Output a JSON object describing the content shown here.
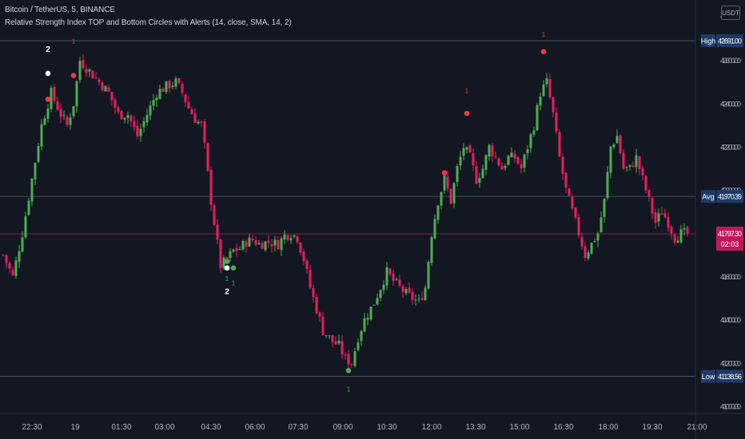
{
  "header": {
    "symbol_line": "Bitcoin / TetherUS, 5, BINANCE",
    "indicator_line": "Relative Strength Index TOP and Bottom Circles with Alerts (14, close, SMA, 14, 2)"
  },
  "currency_button": {
    "label": "USDT"
  },
  "colors": {
    "background": "#131722",
    "up_candle": "#4caf50",
    "down_candle": "#e91e63",
    "grid_line": "#363a45",
    "price_line": "#e91e63",
    "top_circle": "#f23645",
    "bottom_circle": "#4caf50",
    "marker_white": "#ffffff",
    "label_blue": "#1e3a68"
  },
  "chart_data": {
    "type": "candlestick",
    "y_axis": {
      "ticks": [
        "42600.00",
        "42400.00",
        "42200.00",
        "42000.00",
        "41800.00",
        "41600.00",
        "41400.00",
        "41200.00",
        "41000.00"
      ],
      "tick_values": [
        42600,
        42400,
        42200,
        42000,
        41800,
        41600,
        41400,
        41200,
        41000
      ],
      "partial_top_tick": "4",
      "range": [
        40980,
        42750
      ]
    },
    "x_axis": {
      "ticks": [
        "22:30",
        "19",
        "01:30",
        "03:00",
        "04:30",
        "06:00",
        "07:30",
        "09:00",
        "10:30",
        "12:00",
        "13:30",
        "15:00",
        "16:30",
        "18:00",
        "19:30",
        "21:00"
      ]
    },
    "levels": [
      {
        "label": "High",
        "value": "42691.00",
        "y": 42691
      },
      {
        "label": "Avg",
        "value": "41970.39",
        "y": 41970.39
      }
    ],
    "low_level": {
      "label": "Low",
      "value": "41138.56",
      "y": 41138.56
    },
    "current_price": {
      "value": "41797.30",
      "countdown": "02:03",
      "y": 41797.3
    },
    "anchors": [
      [
        0,
        41700
      ],
      [
        3,
        41600
      ],
      [
        6,
        41800
      ],
      [
        9,
        42050
      ],
      [
        12,
        42300
      ],
      [
        15,
        42450
      ],
      [
        18,
        42350
      ],
      [
        20,
        42300
      ],
      [
        22,
        42400
      ],
      [
        24,
        42600
      ],
      [
        27,
        42550
      ],
      [
        30,
        42500
      ],
      [
        33,
        42450
      ],
      [
        36,
        42350
      ],
      [
        39,
        42350
      ],
      [
        42,
        42250
      ],
      [
        45,
        42350
      ],
      [
        48,
        42450
      ],
      [
        51,
        42480
      ],
      [
        54,
        42500
      ],
      [
        56,
        42450
      ],
      [
        58,
        42380
      ],
      [
        60,
        42330
      ],
      [
        62,
        42300
      ],
      [
        63,
        42200
      ],
      [
        65,
        41950
      ],
      [
        67,
        41750
      ],
      [
        68,
        41650
      ],
      [
        70,
        41680
      ],
      [
        72,
        41720
      ],
      [
        74,
        41730
      ],
      [
        76,
        41760
      ],
      [
        78,
        41770
      ],
      [
        80,
        41750
      ],
      [
        83,
        41760
      ],
      [
        86,
        41750
      ],
      [
        88,
        41790
      ],
      [
        90,
        41800
      ],
      [
        92,
        41780
      ],
      [
        94,
        41680
      ],
      [
        96,
        41550
      ],
      [
        98,
        41450
      ],
      [
        100,
        41350
      ],
      [
        103,
        41300
      ],
      [
        105,
        41280
      ],
      [
        107,
        41220
      ],
      [
        109,
        41200
      ],
      [
        111,
        41320
      ],
      [
        113,
        41400
      ],
      [
        116,
        41480
      ],
      [
        118,
        41550
      ],
      [
        120,
        41620
      ],
      [
        122,
        41580
      ],
      [
        124,
        41550
      ],
      [
        126,
        41520
      ],
      [
        128,
        41500
      ],
      [
        130,
        41480
      ],
      [
        132,
        41550
      ],
      [
        134,
        41800
      ],
      [
        136,
        41950
      ],
      [
        138,
        42050
      ],
      [
        140,
        41950
      ],
      [
        142,
        42100
      ],
      [
        144,
        42200
      ],
      [
        146,
        42150
      ],
      [
        148,
        42050
      ],
      [
        150,
        42100
      ],
      [
        152,
        42200
      ],
      [
        154,
        42150
      ],
      [
        156,
        42100
      ],
      [
        158,
        42150
      ],
      [
        160,
        42150
      ],
      [
        162,
        42100
      ],
      [
        164,
        42200
      ],
      [
        166,
        42300
      ],
      [
        168,
        42450
      ],
      [
        170,
        42500
      ],
      [
        172,
        42350
      ],
      [
        174,
        42150
      ],
      [
        176,
        42000
      ],
      [
        178,
        41900
      ],
      [
        180,
        41800
      ],
      [
        182,
        41700
      ],
      [
        184,
        41750
      ],
      [
        186,
        41800
      ],
      [
        188,
        41950
      ],
      [
        190,
        42200
      ],
      [
        192,
        42250
      ],
      [
        194,
        42100
      ],
      [
        196,
        42100
      ],
      [
        198,
        42150
      ],
      [
        200,
        42050
      ],
      [
        202,
        41950
      ],
      [
        204,
        41850
      ],
      [
        206,
        41900
      ],
      [
        208,
        41850
      ],
      [
        210,
        41780
      ],
      [
        212,
        41800
      ],
      [
        214,
        41800
      ]
    ],
    "top_circles": [
      {
        "bar": 22,
        "y": 42530,
        "label": "1",
        "label_y": 42690,
        "color": "red"
      },
      {
        "bar": 14,
        "y": 42420,
        "label": "",
        "color": "red"
      },
      {
        "bar": 14,
        "y": 42540,
        "label": "2",
        "label_y": 42650,
        "color": "white"
      },
      {
        "bar": 138,
        "y": 42080,
        "label": "",
        "color": "red"
      },
      {
        "bar": 145,
        "y": 42355,
        "label": "1",
        "label_y": 42460,
        "color": "red"
      },
      {
        "bar": 169,
        "y": 42640,
        "label": "1",
        "label_y": 42720,
        "color": "red"
      }
    ],
    "bottom_circles": [
      {
        "bar": 70,
        "y": 41640,
        "label": "2",
        "label_y": 41530,
        "color": "white"
      },
      {
        "bar": 70,
        "y": 41670,
        "label": "1",
        "label_y": 41590,
        "color": "green"
      },
      {
        "bar": 72,
        "y": 41640,
        "label": "1",
        "label_y": 41570,
        "color": "green"
      },
      {
        "bar": 108,
        "y": 41165,
        "label": "1",
        "label_y": 41080,
        "color": "green"
      }
    ]
  }
}
